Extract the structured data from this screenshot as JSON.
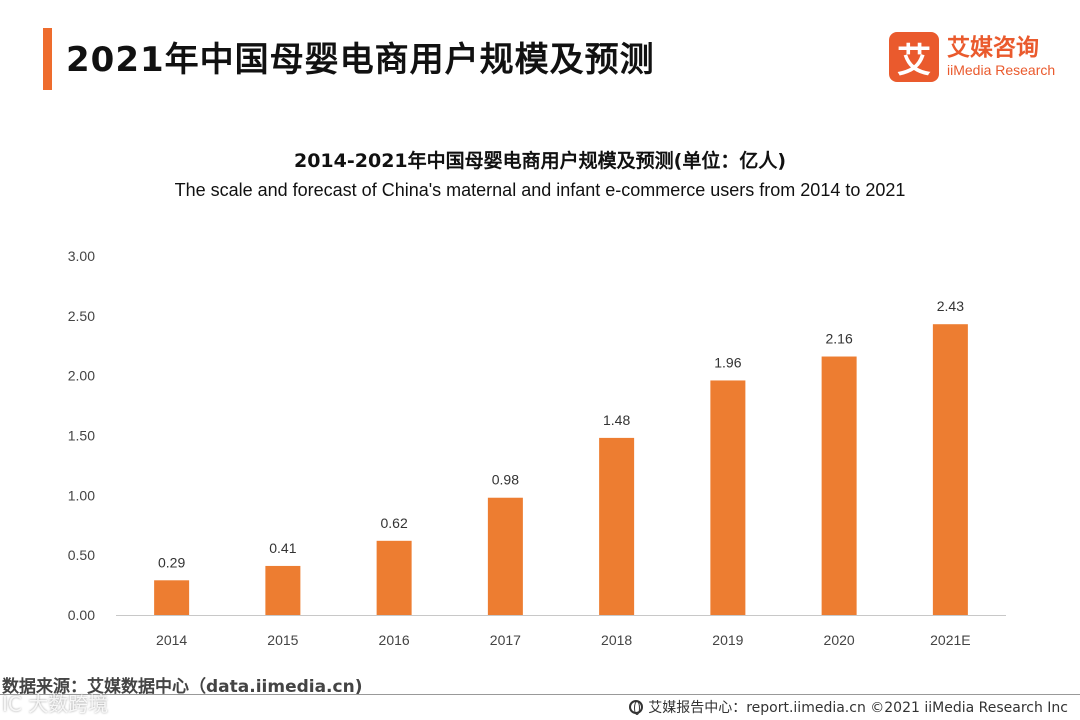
{
  "header": {
    "title": "2021年中国母婴电商用户规模及预测",
    "logo_mark": "艾",
    "logo_cn": "艾媒咨询",
    "logo_en": "iiMedia Research"
  },
  "colors": {
    "accent": "#ee6c2d",
    "bar": "#ed7d31",
    "logo": "#ea5a2d"
  },
  "chart_data": {
    "type": "bar",
    "title": "2014-2021年中国母婴电商用户规模及预测(单位：亿人)",
    "subtitle": "The scale and forecast of China's maternal and infant e-commerce users from 2014 to 2021",
    "categories": [
      "2014",
      "2015",
      "2016",
      "2017",
      "2018",
      "2019",
      "2020",
      "2021E"
    ],
    "values": [
      0.29,
      0.41,
      0.62,
      0.98,
      1.48,
      1.96,
      2.16,
      2.43
    ],
    "value_labels": [
      "0.29",
      "0.41",
      "0.62",
      "0.98",
      "1.48",
      "1.96",
      "2.16",
      "2.43"
    ],
    "ylim": [
      0,
      3
    ],
    "yticks": [
      "0.00",
      "0.50",
      "1.00",
      "1.50",
      "2.00",
      "2.50",
      "3.00"
    ],
    "grid": false,
    "legend": "none",
    "xlabel": "",
    "ylabel": ""
  },
  "footer": {
    "source": "数据来源：艾媒数据中心（data.iimedia.cn)",
    "watermark": "IC 大数跨境",
    "right": "艾媒报告中心：report.iimedia.cn  ©2021  iiMedia Research  Inc"
  }
}
